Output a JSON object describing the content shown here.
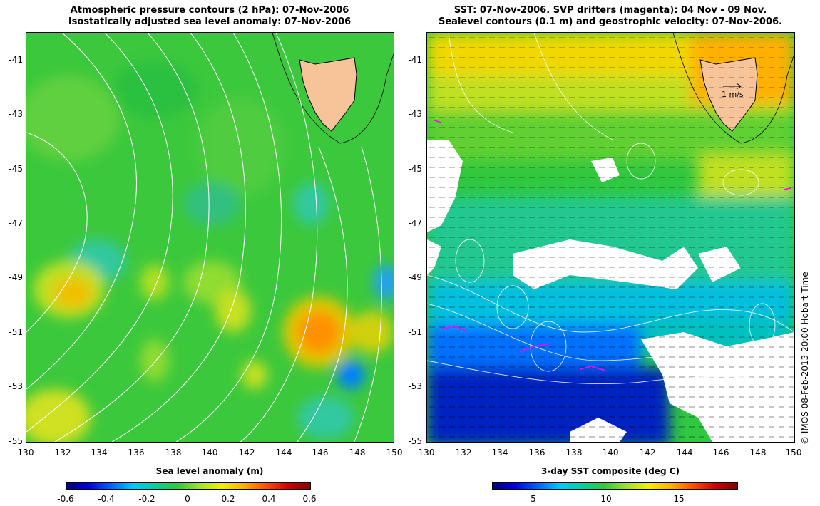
{
  "left_panel": {
    "title_line1": "Atmospheric pressure contours (2 hPa): 07-Nov-2006",
    "title_line2": "Isostatically adjusted sea level anomaly: 07-Nov-2006",
    "colorbar_title": "Sea level anomaly (m)",
    "colorbar_ticks": [
      "-0.6",
      "-0.4",
      "-0.2",
      "0",
      "0.2",
      "0.4",
      "0.6"
    ],
    "colormap": [
      "#00007a",
      "#0000e0",
      "#0060ff",
      "#00c8ff",
      "#00d2a0",
      "#30c840",
      "#a0e030",
      "#f0f000",
      "#ffb000",
      "#ff5000",
      "#d00000",
      "#800000"
    ]
  },
  "right_panel": {
    "title_line1": "SST: 07-Nov-2006. SVP drifters (magenta): 04 Nov - 09 Nov.",
    "title_line2": "Sealevel contours (0.1 m) and geostrophic velocity: 07-Nov-2006.",
    "colorbar_title": "3-day SST composite (deg C)",
    "colorbar_ticks": [
      "5",
      "10",
      "15"
    ],
    "velocity_scale_label": "1 m/s",
    "colormap": [
      "#00007a",
      "#0000e0",
      "#0060ff",
      "#00c8ff",
      "#00d2a0",
      "#30c840",
      "#a0e030",
      "#f0f000",
      "#ffb000",
      "#ff5000",
      "#d00000",
      "#800000"
    ]
  },
  "axes": {
    "y_ticks": [
      "-41",
      "-43",
      "-45",
      "-47",
      "-49",
      "-51",
      "-53",
      "-55"
    ],
    "x_ticks": [
      "130",
      "132",
      "134",
      "136",
      "138",
      "140",
      "142",
      "144",
      "146",
      "148",
      "150"
    ],
    "lon_range": [
      130,
      150
    ],
    "lat_range": [
      -55,
      -40.2
    ]
  },
  "copyright": "© IMOS 08-Feb-2013 20:00 Hobart Time",
  "colors": {
    "land": "#f7c49a",
    "cloud": "#ffffff",
    "pressure_contour": "#ffffff",
    "drifter": "#ff00ff"
  }
}
